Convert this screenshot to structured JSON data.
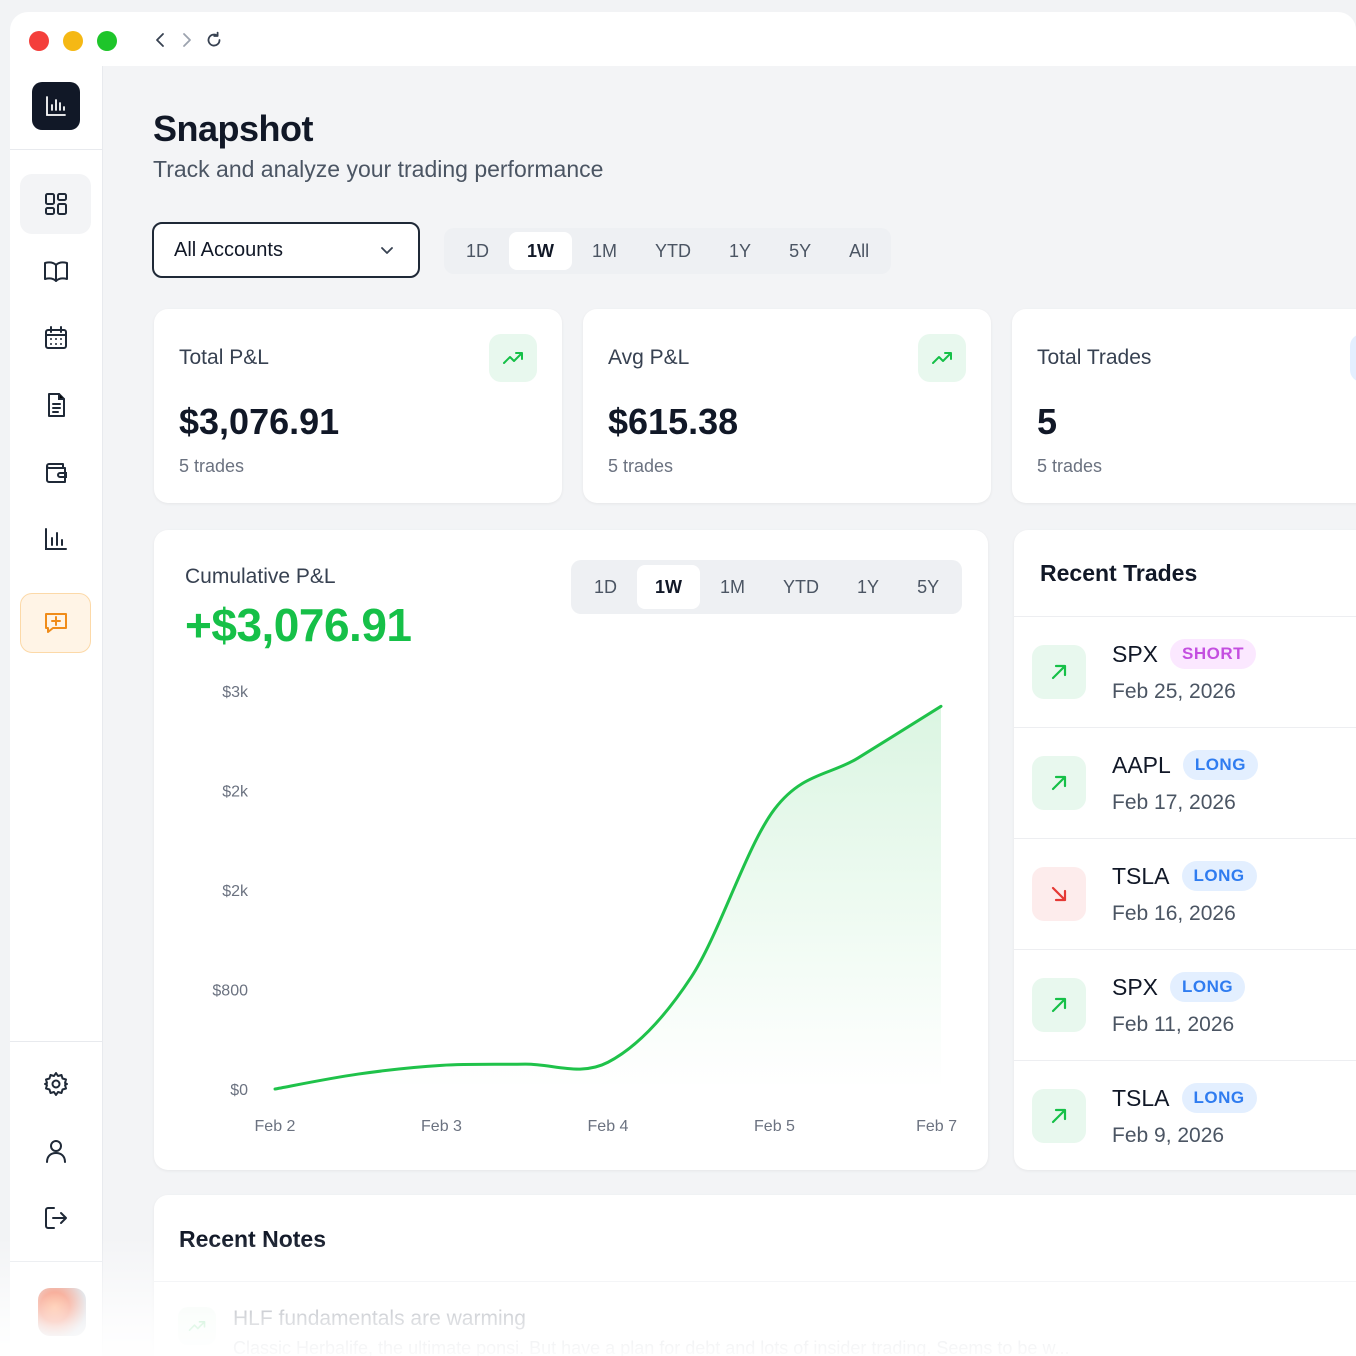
{
  "page": {
    "title": "Snapshot",
    "subtitle": "Track and analyze your trading performance"
  },
  "filters": {
    "account_select": "All Accounts",
    "ranges": [
      "1D",
      "1W",
      "1M",
      "YTD",
      "1Y",
      "5Y",
      "All"
    ],
    "active_range": "1W"
  },
  "kpis": [
    {
      "label": "Total P&L",
      "value": "$3,076.91",
      "sub": "5 trades",
      "icon": "trending-up-icon"
    },
    {
      "label": "Avg P&L",
      "value": "$615.38",
      "sub": "5 trades",
      "icon": "trending-up-icon"
    },
    {
      "label": "Total Trades",
      "value": "5",
      "sub": "5 trades",
      "icon": "trades-icon"
    }
  ],
  "chart": {
    "label": "Cumulative P&L",
    "total": "+$3,076.91",
    "ranges": [
      "1D",
      "1W",
      "1M",
      "YTD",
      "1Y",
      "5Y"
    ],
    "active_range": "1W"
  },
  "chart_data": {
    "type": "area",
    "title": "Cumulative P&L",
    "categories": [
      "Feb 2",
      "Feb 3",
      "Feb 4",
      "Feb 5",
      "Feb 7"
    ],
    "y_tick_labels": [
      "$3k",
      "$2k",
      "$2k",
      "$800",
      "$0"
    ],
    "y_tick_values": [
      3200,
      2400,
      1600,
      800,
      0
    ],
    "ylim": [
      0,
      3200
    ],
    "series": [
      {
        "x": [
          0,
          0.5,
          1,
          1.5,
          2,
          2.5,
          3,
          3.5,
          4
        ],
        "values": [
          0,
          120,
          190,
          200,
          215,
          900,
          2250,
          2660,
          3076.91
        ]
      }
    ],
    "color": "#1fc24a",
    "grid": false,
    "legend": "none"
  },
  "recent_trades": {
    "title": "Recent Trades",
    "items": [
      {
        "symbol": "SPX",
        "side": "SHORT",
        "date": "Feb 25, 2026",
        "direction": "up"
      },
      {
        "symbol": "AAPL",
        "side": "LONG",
        "date": "Feb 17, 2026",
        "direction": "up"
      },
      {
        "symbol": "TSLA",
        "side": "LONG",
        "date": "Feb 16, 2026",
        "direction": "down"
      },
      {
        "symbol": "SPX",
        "side": "LONG",
        "date": "Feb 11, 2026",
        "direction": "up"
      },
      {
        "symbol": "TSLA",
        "side": "LONG",
        "date": "Feb 9, 2026",
        "direction": "up"
      }
    ]
  },
  "recent_notes": {
    "title": "Recent Notes",
    "items": [
      {
        "title": "HLF fundamentals are warming",
        "body": "Classic Herbalife, the ultimate ponsi. But have a plan for debt and lots of insider trading. Seems to be w..."
      }
    ]
  },
  "sidebar": {
    "items": [
      "dashboard",
      "journal",
      "calendar",
      "notes",
      "accounts",
      "reports",
      "feedback"
    ],
    "bottom": [
      "settings",
      "profile",
      "logout"
    ]
  },
  "colors": {
    "accent_green": "#16c048",
    "loss_red": "#e53935",
    "long_blue": "#2f7cf0",
    "short_purple": "#c44fe0",
    "dark": "#111827"
  }
}
